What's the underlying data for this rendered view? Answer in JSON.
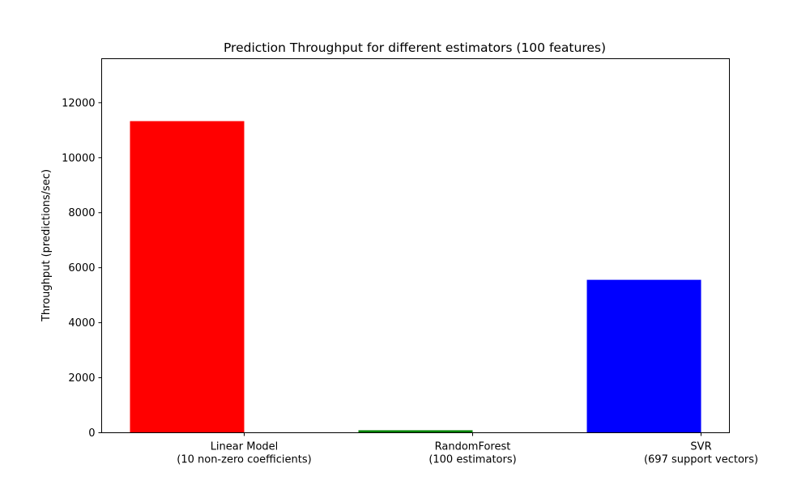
{
  "chart_data": {
    "type": "bar",
    "title": "Prediction Throughput for different estimators (100 features)",
    "xlabel": "",
    "ylabel": "Throughput (predictions/sec)",
    "categories": [
      "Linear Model\n(10 non-zero coefficients)",
      "RandomForest\n(100 estimators)",
      "SVR\n(697 support vectors)"
    ],
    "values": [
      11330,
      90,
      5560
    ],
    "colors": [
      "#ff0000",
      "#008000",
      "#0000ff"
    ],
    "ylim": [
      0,
      13600
    ],
    "yticks": [
      0,
      2000,
      4000,
      6000,
      8000,
      10000,
      12000
    ],
    "grid": false
  }
}
